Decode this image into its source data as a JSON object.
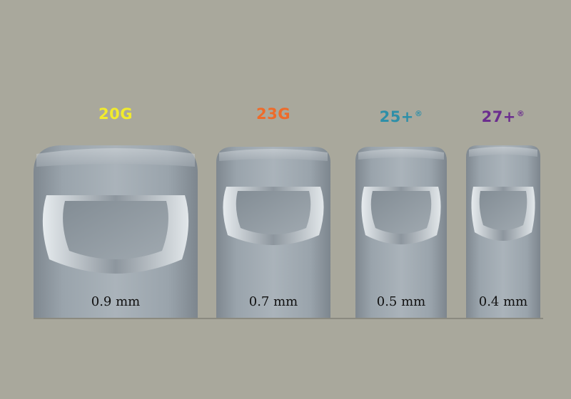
{
  "gauges": [
    {
      "name": "20G",
      "sup": "",
      "diameter": "0.9 mm",
      "color": "#f1eb2d"
    },
    {
      "name": "23G",
      "sup": "",
      "diameter": "0.7 mm",
      "color": "#ee6b2a"
    },
    {
      "name": "25+",
      "sup": "®",
      "diameter": "0.5 mm",
      "color": "#2e8fa8"
    },
    {
      "name": "27+",
      "sup": "®",
      "diameter": "0.4 mm",
      "color": "#6b2d8e"
    }
  ],
  "colors": {
    "background": "#a9a89c",
    "tip": "#9fa9b1"
  }
}
